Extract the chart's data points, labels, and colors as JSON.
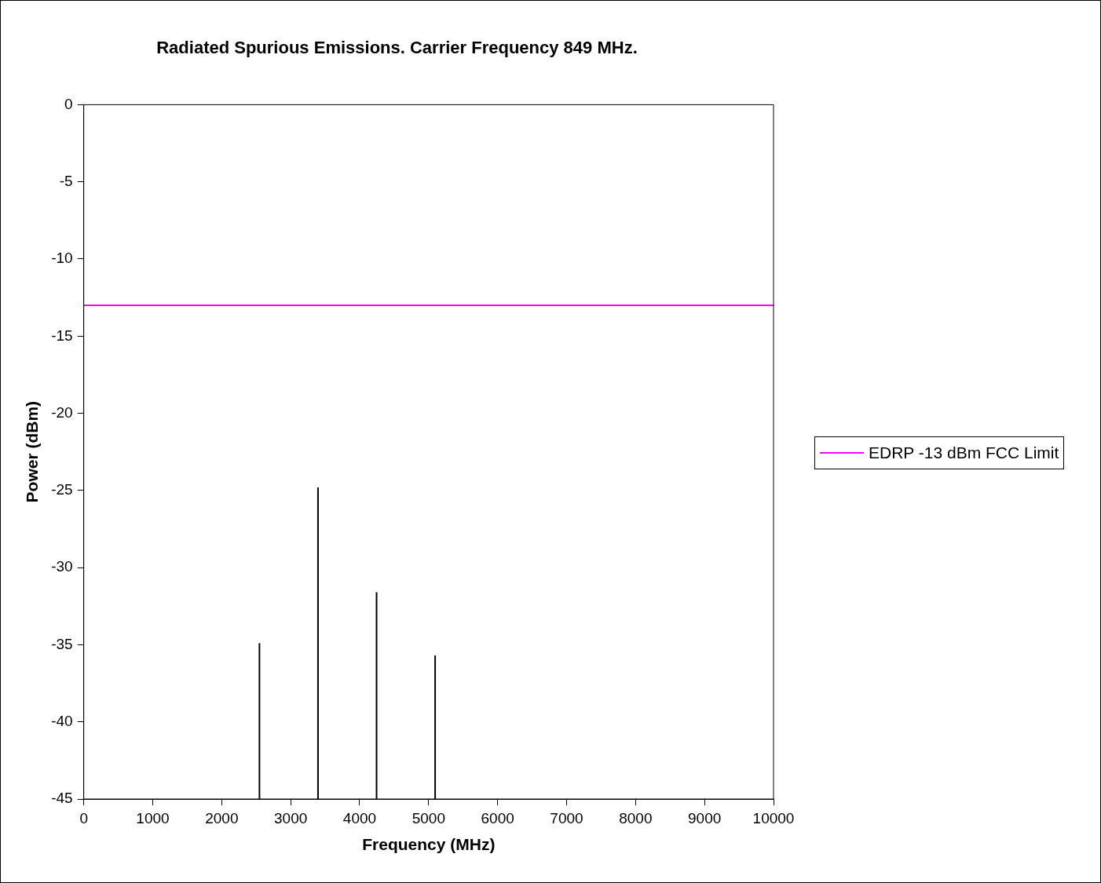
{
  "chart_data": {
    "type": "line",
    "title": "Radiated Spurious Emissions. Carrier Frequency 849 MHz.",
    "xlabel": "Frequency (MHz)",
    "ylabel": "Power (dBm)",
    "series": [
      {
        "color": "#000000",
        "x": [
          2547,
          2547
        ],
        "values": [
          -45,
          -34.9
        ]
      },
      {
        "color": "#000000",
        "x": [
          3396,
          3396
        ],
        "values": [
          -45,
          -24.8
        ]
      },
      {
        "color": "#000000",
        "x": [
          4245,
          4245
        ],
        "values": [
          -45,
          -31.6
        ]
      },
      {
        "color": "#000000",
        "x": [
          5094,
          5094
        ],
        "values": [
          -45,
          -35.7
        ]
      }
    ],
    "marker": "none",
    "xlim": [
      0,
      10000
    ],
    "xticks": [
      0,
      1000,
      2000,
      3000,
      4000,
      5000,
      6000,
      7000,
      8000,
      9000,
      10000
    ],
    "ylim": [
      -45,
      0
    ],
    "yticks": [
      -45,
      -40,
      -35,
      -30,
      -25,
      -20,
      -15,
      -10,
      -5,
      0
    ],
    "ref_lines": [
      {
        "axis": "y",
        "value": -13,
        "label": "EDRP -13 dBm FCC Limit",
        "color": "#ff00ff"
      }
    ],
    "legend": "right"
  }
}
